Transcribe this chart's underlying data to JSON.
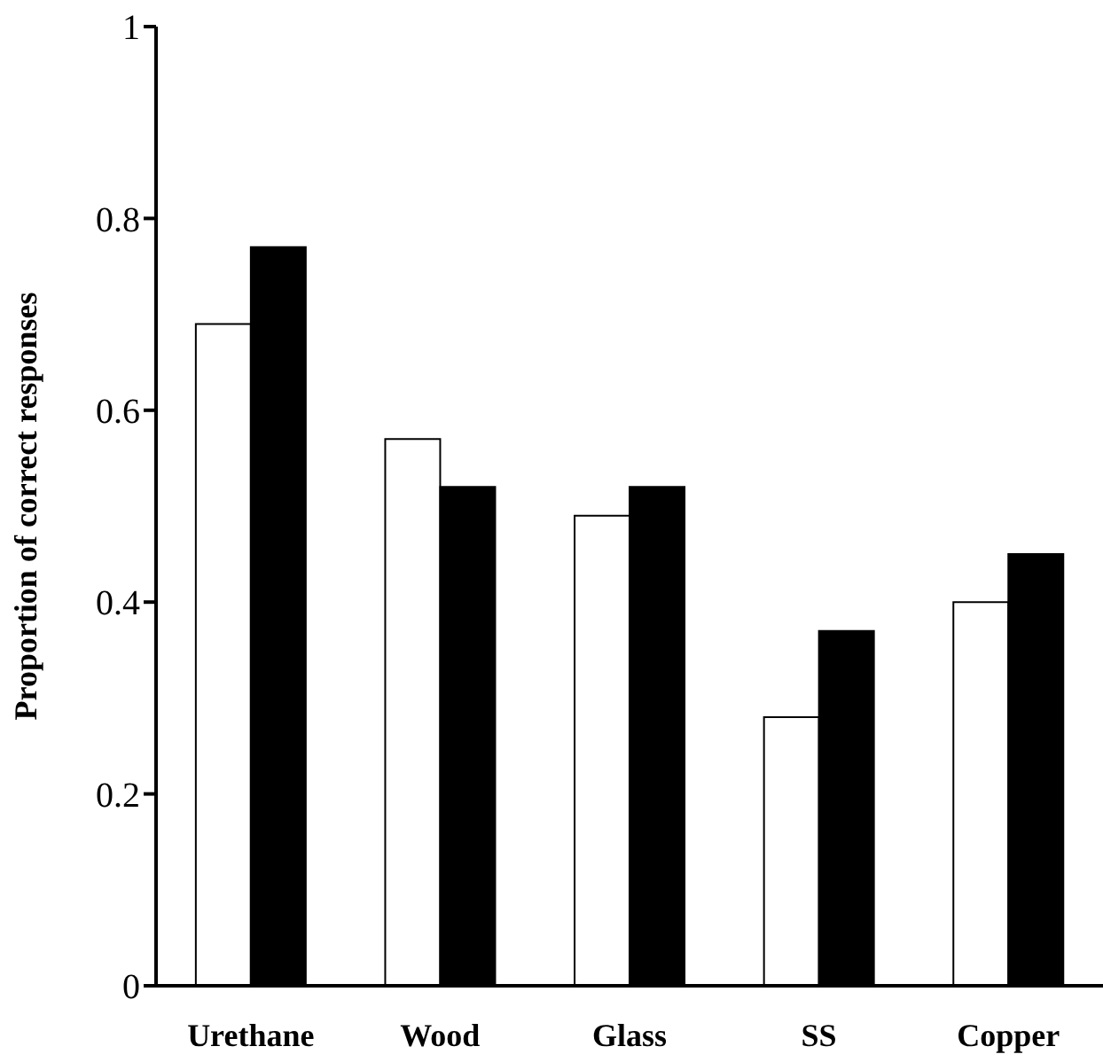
{
  "chart_data": {
    "type": "bar",
    "ylabel": "Proportion of correct responses",
    "categories": [
      "Urethane",
      "Wood",
      "Glass",
      "SS",
      "Copper"
    ],
    "series": [
      {
        "color": "#ffffff",
        "values": [
          0.69,
          0.57,
          0.49,
          0.28,
          0.4
        ]
      },
      {
        "color": "#000000",
        "values": [
          0.77,
          0.52,
          0.52,
          0.37,
          0.45
        ]
      }
    ],
    "ylim": [
      0,
      1
    ],
    "yticks": [
      0,
      0.2,
      0.4,
      0.6,
      0.8,
      1
    ],
    "grid": false,
    "legend": false
  }
}
